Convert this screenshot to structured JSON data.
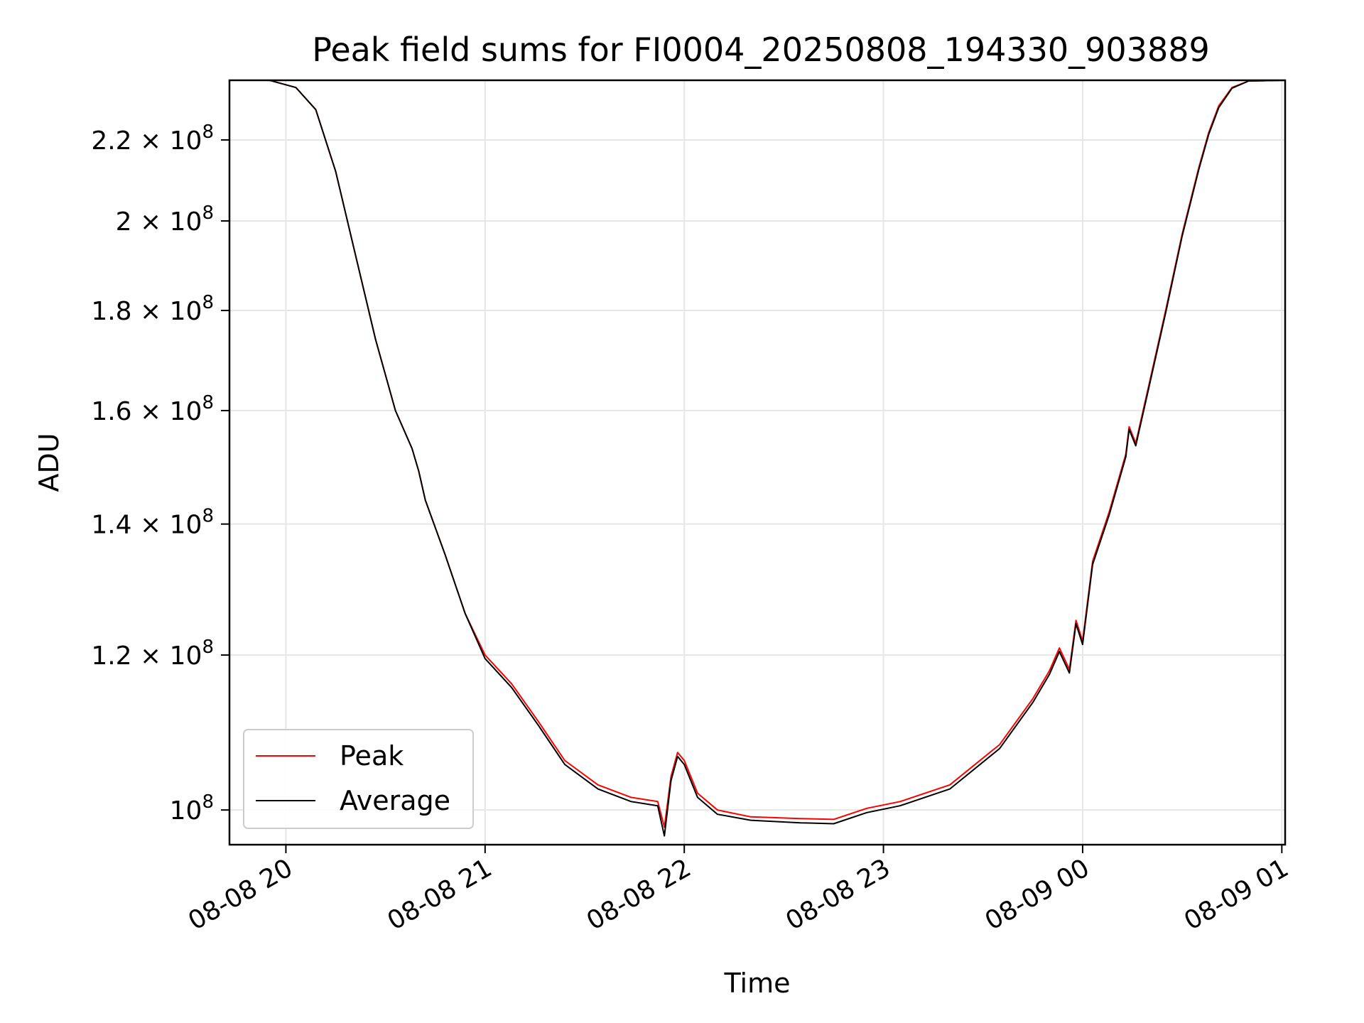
{
  "chart_data": {
    "type": "line",
    "title": "Peak field sums for FI0004_20250808_194330_903889",
    "xlabel": "Time",
    "ylabel": "ADU",
    "y_scale": "log",
    "grid": true,
    "legend_placement": "lower-left",
    "xlim": [
      "2025-08-08 19:43",
      "2025-08-09 01:01"
    ],
    "ylim": [
      96000000,
      236000000
    ],
    "x_ticks": [
      "2025-08-08 20:00",
      "2025-08-08 21:00",
      "2025-08-08 22:00",
      "2025-08-08 23:00",
      "2025-08-09 00:00",
      "2025-08-09 01:00"
    ],
    "x_tick_labels": [
      "08-08 20",
      "08-08 21",
      "08-08 22",
      "08-08 23",
      "08-09 00",
      "08-09 01"
    ],
    "y_ticks": [
      {
        "value": 100000000,
        "mantissa": "",
        "exponent": "8"
      },
      {
        "value": 120000000,
        "mantissa": "1.2",
        "exponent": "8"
      },
      {
        "value": 140000000,
        "mantissa": "1.4",
        "exponent": "8"
      },
      {
        "value": 160000000,
        "mantissa": "1.6",
        "exponent": "8"
      },
      {
        "value": 180000000,
        "mantissa": "1.8",
        "exponent": "8"
      },
      {
        "value": 200000000,
        "mantissa": "2",
        "exponent": "8"
      },
      {
        "value": 220000000,
        "mantissa": "2.2",
        "exponent": "8"
      }
    ],
    "series": [
      {
        "name": "Peak",
        "color": "#ff0000",
        "points": [
          [
            "2025-08-08 19:43",
            236000000
          ],
          [
            "2025-08-08 19:55",
            236000000
          ],
          [
            "2025-08-08 20:03",
            234000000
          ],
          [
            "2025-08-08 20:09",
            228000000
          ],
          [
            "2025-08-08 20:15",
            212000000
          ],
          [
            "2025-08-08 20:21",
            192000000
          ],
          [
            "2025-08-08 20:27",
            174000000
          ],
          [
            "2025-08-08 20:33",
            160000000
          ],
          [
            "2025-08-08 20:38",
            153000000
          ],
          [
            "2025-08-08 20:40",
            149000000
          ],
          [
            "2025-08-08 20:42",
            144000000
          ],
          [
            "2025-08-08 20:48",
            135000000
          ],
          [
            "2025-08-08 20:54",
            126000000
          ],
          [
            "2025-08-08 21:00",
            120000000
          ],
          [
            "2025-08-08 21:08",
            116000000
          ],
          [
            "2025-08-08 21:16",
            111000000
          ],
          [
            "2025-08-08 21:24",
            106000000
          ],
          [
            "2025-08-08 21:34",
            103000000
          ],
          [
            "2025-08-08 21:44",
            101500000
          ],
          [
            "2025-08-08 21:52",
            101000000
          ],
          [
            "2025-08-08 21:54",
            98000000
          ],
          [
            "2025-08-08 21:56",
            104000000
          ],
          [
            "2025-08-08 21:58",
            107000000
          ],
          [
            "2025-08-08 22:00",
            106000000
          ],
          [
            "2025-08-08 22:04",
            102000000
          ],
          [
            "2025-08-08 22:10",
            100000000
          ],
          [
            "2025-08-08 22:20",
            99200000
          ],
          [
            "2025-08-08 22:35",
            99000000
          ],
          [
            "2025-08-08 22:45",
            98900000
          ],
          [
            "2025-08-08 22:55",
            100200000
          ],
          [
            "2025-08-08 23:05",
            101000000
          ],
          [
            "2025-08-08 23:20",
            103000000
          ],
          [
            "2025-08-08 23:35",
            108000000
          ],
          [
            "2025-08-08 23:45",
            114000000
          ],
          [
            "2025-08-08 23:50",
            117800000
          ],
          [
            "2025-08-08 23:53",
            121000000
          ],
          [
            "2025-08-08 23:56",
            118000000
          ],
          [
            "2025-08-08 23:58",
            125000000
          ],
          [
            "2025-08-09 00:00",
            122000000
          ],
          [
            "2025-08-09 00:03",
            134000000
          ],
          [
            "2025-08-09 00:08",
            142000000
          ],
          [
            "2025-08-09 00:13",
            152000000
          ],
          [
            "2025-08-09 00:14",
            157000000
          ],
          [
            "2025-08-09 00:16",
            154000000
          ],
          [
            "2025-08-09 00:20",
            165000000
          ],
          [
            "2025-08-09 00:25",
            180000000
          ],
          [
            "2025-08-09 00:30",
            197000000
          ],
          [
            "2025-08-09 00:35",
            213000000
          ],
          [
            "2025-08-09 00:38",
            222000000
          ],
          [
            "2025-08-09 00:41",
            229000000
          ],
          [
            "2025-08-09 00:45",
            234000000
          ],
          [
            "2025-08-09 00:50",
            235800000
          ],
          [
            "2025-08-09 01:01",
            236000000
          ]
        ]
      },
      {
        "name": "Average",
        "color": "#000000",
        "points": [
          [
            "2025-08-08 19:43",
            236000000
          ],
          [
            "2025-08-08 19:55",
            236000000
          ],
          [
            "2025-08-08 20:03",
            234000000
          ],
          [
            "2025-08-08 20:09",
            228000000
          ],
          [
            "2025-08-08 20:15",
            212000000
          ],
          [
            "2025-08-08 20:21",
            192000000
          ],
          [
            "2025-08-08 20:27",
            174000000
          ],
          [
            "2025-08-08 20:33",
            160000000
          ],
          [
            "2025-08-08 20:38",
            153000000
          ],
          [
            "2025-08-08 20:40",
            149000000
          ],
          [
            "2025-08-08 20:42",
            144000000
          ],
          [
            "2025-08-08 20:48",
            135000000
          ],
          [
            "2025-08-08 20:54",
            126000000
          ],
          [
            "2025-08-08 21:00",
            119500000
          ],
          [
            "2025-08-08 21:08",
            115500000
          ],
          [
            "2025-08-08 21:16",
            110500000
          ],
          [
            "2025-08-08 21:24",
            105500000
          ],
          [
            "2025-08-08 21:34",
            102500000
          ],
          [
            "2025-08-08 21:44",
            101000000
          ],
          [
            "2025-08-08 21:52",
            100500000
          ],
          [
            "2025-08-08 21:54",
            97000000
          ],
          [
            "2025-08-08 21:56",
            103500000
          ],
          [
            "2025-08-08 21:58",
            106500000
          ],
          [
            "2025-08-08 22:00",
            105500000
          ],
          [
            "2025-08-08 22:04",
            101500000
          ],
          [
            "2025-08-08 22:10",
            99500000
          ],
          [
            "2025-08-08 22:20",
            98800000
          ],
          [
            "2025-08-08 22:35",
            98500000
          ],
          [
            "2025-08-08 22:45",
            98400000
          ],
          [
            "2025-08-08 22:55",
            99700000
          ],
          [
            "2025-08-08 23:05",
            100500000
          ],
          [
            "2025-08-08 23:20",
            102500000
          ],
          [
            "2025-08-08 23:35",
            107500000
          ],
          [
            "2025-08-08 23:45",
            113500000
          ],
          [
            "2025-08-08 23:50",
            117300000
          ],
          [
            "2025-08-08 23:53",
            120500000
          ],
          [
            "2025-08-08 23:56",
            117500000
          ],
          [
            "2025-08-08 23:58",
            124500000
          ],
          [
            "2025-08-09 00:00",
            121500000
          ],
          [
            "2025-08-09 00:03",
            133500000
          ],
          [
            "2025-08-09 00:08",
            141500000
          ],
          [
            "2025-08-09 00:13",
            151500000
          ],
          [
            "2025-08-09 00:14",
            156500000
          ],
          [
            "2025-08-09 00:16",
            153500000
          ],
          [
            "2025-08-09 00:20",
            164500000
          ],
          [
            "2025-08-09 00:25",
            179500000
          ],
          [
            "2025-08-09 00:30",
            196500000
          ],
          [
            "2025-08-09 00:35",
            212500000
          ],
          [
            "2025-08-09 00:38",
            221500000
          ],
          [
            "2025-08-09 00:41",
            228500000
          ],
          [
            "2025-08-09 00:45",
            233800000
          ],
          [
            "2025-08-09 00:50",
            235800000
          ],
          [
            "2025-08-09 01:01",
            236000000
          ]
        ]
      }
    ]
  }
}
